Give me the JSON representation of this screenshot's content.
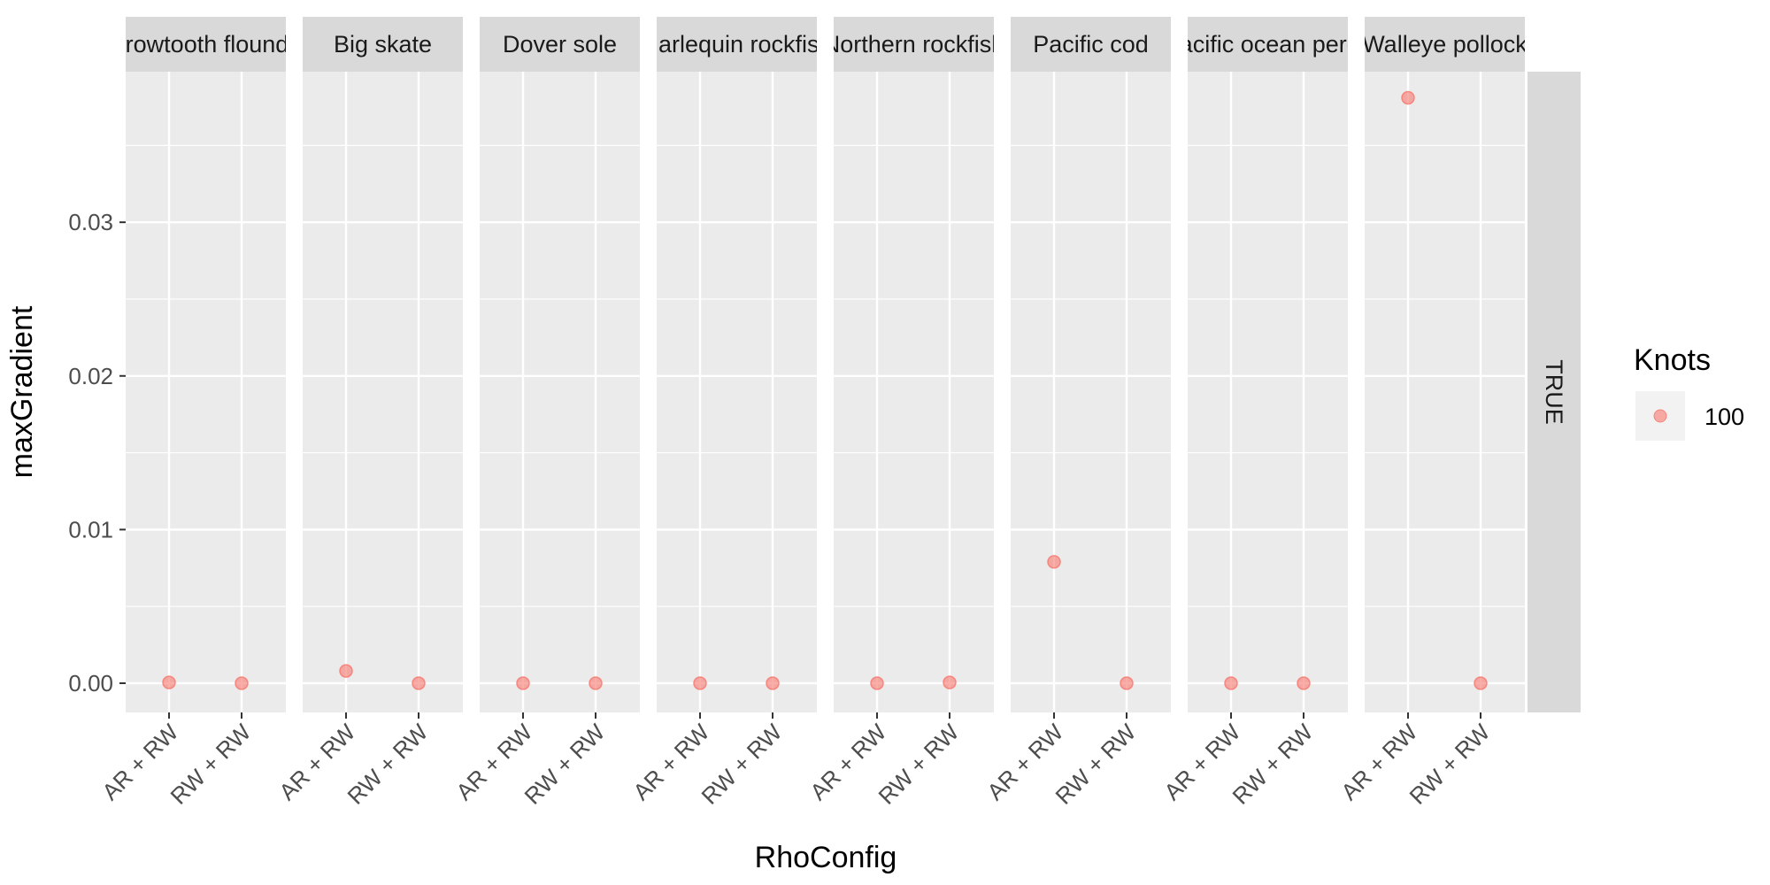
{
  "chart_data": {
    "type": "scatter",
    "xlabel": "RhoConfig",
    "ylabel": "maxGradient",
    "x_categories": [
      "AR + RW",
      "RW + RW"
    ],
    "yticks": [
      "0.00",
      "0.01",
      "0.02",
      "0.03"
    ],
    "ytick_values": [
      0,
      0.01,
      0.02,
      0.03
    ],
    "ylim": [
      -0.0019,
      0.0398
    ],
    "row_facet_label": "TRUE",
    "panels": [
      {
        "label": "Arrowtooth flounder",
        "points": [
          {
            "x": "AR + RW",
            "y": 5e-05
          },
          {
            "x": "RW + RW",
            "y": 0.0
          }
        ]
      },
      {
        "label": "Big skate",
        "points": [
          {
            "x": "AR + RW",
            "y": 0.0008
          },
          {
            "x": "RW + RW",
            "y": 0.0
          }
        ]
      },
      {
        "label": "Dover sole",
        "points": [
          {
            "x": "AR + RW",
            "y": 0.0
          },
          {
            "x": "RW + RW",
            "y": 0.0
          }
        ]
      },
      {
        "label": "Harlequin rockfish",
        "points": [
          {
            "x": "AR + RW",
            "y": 0.0
          },
          {
            "x": "RW + RW",
            "y": 0.0
          }
        ]
      },
      {
        "label": "Northern rockfish",
        "points": [
          {
            "x": "AR + RW",
            "y": 0.0
          },
          {
            "x": "RW + RW",
            "y": 5e-05
          }
        ]
      },
      {
        "label": "Pacific cod",
        "points": [
          {
            "x": "AR + RW",
            "y": 0.0079
          },
          {
            "x": "RW + RW",
            "y": 0.0
          }
        ]
      },
      {
        "label": "Pacific ocean perch",
        "points": [
          {
            "x": "AR + RW",
            "y": 0.0
          },
          {
            "x": "RW + RW",
            "y": 0.0
          }
        ]
      },
      {
        "label": "Walleye pollock",
        "points": [
          {
            "x": "AR + RW",
            "y": 0.0381
          },
          {
            "x": "RW + RW",
            "y": 0.0
          }
        ]
      }
    ],
    "legend": {
      "title": "Knots",
      "items": [
        {
          "label": "100",
          "color": "#F8766D"
        }
      ]
    },
    "colors": {
      "panel_bg": "#EBEBEB",
      "strip_bg": "#D9D9D9",
      "grid": "#FFFFFF",
      "point": "#F8766D"
    }
  }
}
